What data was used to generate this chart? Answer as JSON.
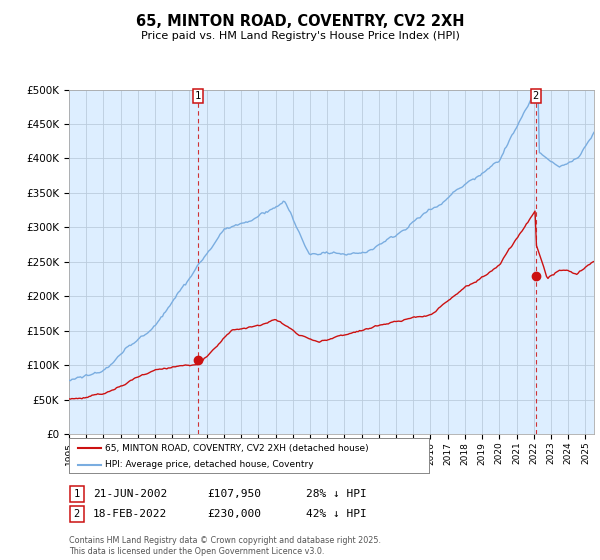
{
  "title": "65, MINTON ROAD, COVENTRY, CV2 2XH",
  "subtitle": "Price paid vs. HM Land Registry's House Price Index (HPI)",
  "ylabel_ticks": [
    "£0",
    "£50K",
    "£100K",
    "£150K",
    "£200K",
    "£250K",
    "£300K",
    "£350K",
    "£400K",
    "£450K",
    "£500K"
  ],
  "ytick_values": [
    0,
    50000,
    100000,
    150000,
    200000,
    250000,
    300000,
    350000,
    400000,
    450000,
    500000
  ],
  "ylim": [
    0,
    500000
  ],
  "xlim_start": 1995.0,
  "xlim_end": 2025.5,
  "hpi_color": "#7aade0",
  "price_color": "#cc1111",
  "marker_color": "#cc1111",
  "chart_bg_color": "#ddeeff",
  "sale1_x": 2002.47,
  "sale1_y": 107950,
  "sale1_label": "1",
  "sale2_x": 2022.12,
  "sale2_y": 230000,
  "sale2_label": "2",
  "legend_line1": "65, MINTON ROAD, COVENTRY, CV2 2XH (detached house)",
  "legend_line2": "HPI: Average price, detached house, Coventry",
  "table_row1": [
    "1",
    "21-JUN-2002",
    "£107,950",
    "28% ↓ HPI"
  ],
  "table_row2": [
    "2",
    "18-FEB-2022",
    "£230,000",
    "42% ↓ HPI"
  ],
  "footer": "Contains HM Land Registry data © Crown copyright and database right 2025.\nThis data is licensed under the Open Government Licence v3.0.",
  "background_color": "#ffffff",
  "grid_color": "#bbccdd"
}
